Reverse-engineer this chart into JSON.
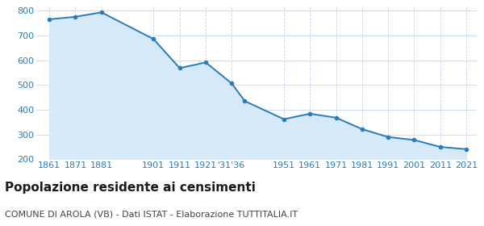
{
  "years": [
    1861,
    1871,
    1881,
    1901,
    1911,
    1921,
    1931,
    1936,
    1951,
    1961,
    1971,
    1981,
    1991,
    2001,
    2011,
    2021
  ],
  "population": [
    765,
    775,
    793,
    685,
    568,
    591,
    506,
    435,
    362,
    384,
    368,
    322,
    290,
    278,
    250,
    241
  ],
  "x_tick_labels": [
    "1861",
    "1871",
    "1881",
    "1901",
    "1911",
    "1921",
    "‱36",
    "1951",
    "1961",
    "1971",
    "1981",
    "1991",
    "2001",
    "2011",
    "2021"
  ],
  "line_color": "#2B7BB9",
  "fill_color": "#D6E9F8",
  "marker_color": "#2B7BB9",
  "grid_color_h": "#C5D8EA",
  "grid_color_v": "#C5D8EA",
  "bg_color": "#FFFFFF",
  "title": "Popolazione residente ai censimenti",
  "subtitle": "COMUNE DI AROLA (VB) - Dati ISTAT - Elaborazione TUTTITALIA.IT",
  "ylim": [
    200,
    820
  ],
  "yticks": [
    200,
    300,
    400,
    500,
    600,
    700,
    800
  ],
  "title_fontsize": 11,
  "subtitle_fontsize": 8,
  "tick_fontsize": 8,
  "tick_color": "#2B7BB9"
}
